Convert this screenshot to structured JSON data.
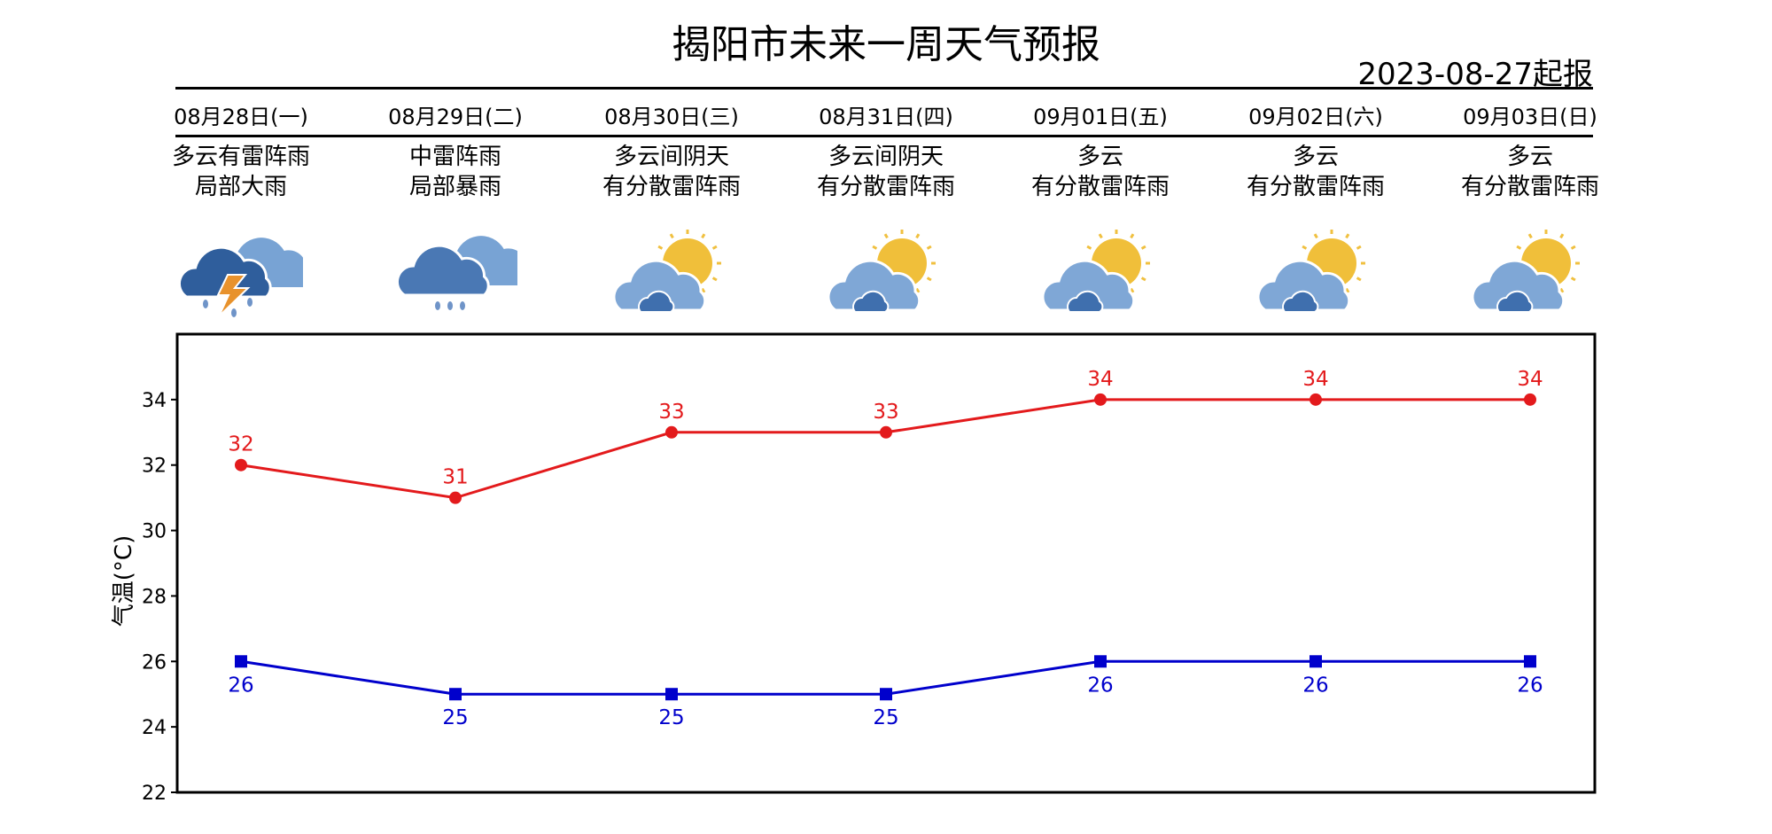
{
  "title": "揭阳市未来一周天气预报",
  "issue_date": "2023-08-27起报",
  "days": [
    {
      "date": "08月28日(一)",
      "desc1": "多云有雷阵雨",
      "desc2": "局部大雨",
      "icon": "thunderstorm-icon"
    },
    {
      "date": "08月29日(二)",
      "desc1": "中雷阵雨",
      "desc2": "局部暴雨",
      "icon": "rain-icon"
    },
    {
      "date": "08月30日(三)",
      "desc1": "多云间阴天",
      "desc2": "有分散雷阵雨",
      "icon": "partly-cloudy-icon"
    },
    {
      "date": "08月31日(四)",
      "desc1": "多云间阴天",
      "desc2": "有分散雷阵雨",
      "icon": "partly-cloudy-icon"
    },
    {
      "date": "09月01日(五)",
      "desc1": "多云",
      "desc2": "有分散雷阵雨",
      "icon": "partly-cloudy-icon"
    },
    {
      "date": "09月02日(六)",
      "desc1": "多云",
      "desc2": "有分散雷阵雨",
      "icon": "partly-cloudy-icon"
    },
    {
      "date": "09月03日(日)",
      "desc1": "多云",
      "desc2": "有分散雷阵雨",
      "icon": "partly-cloudy-icon"
    }
  ],
  "chart_data": {
    "type": "line",
    "categories": [
      "08月28日(一)",
      "08月29日(二)",
      "08月30日(三)",
      "08月31日(四)",
      "09月01日(五)",
      "09月02日(六)",
      "09月03日(日)"
    ],
    "series": [
      {
        "values": [
          32,
          31,
          33,
          33,
          34,
          34,
          34
        ],
        "color": "#e31a1c",
        "marker": "circle"
      },
      {
        "values": [
          26,
          25,
          25,
          25,
          26,
          26,
          26
        ],
        "color": "#0000cc",
        "marker": "square"
      }
    ],
    "ylabel": "气温(°C)",
    "ylim": [
      22,
      36
    ],
    "yticks": [
      "22",
      "24",
      "26",
      "28",
      "30",
      "32",
      "34"
    ],
    "grid": false,
    "data_labels": true
  }
}
